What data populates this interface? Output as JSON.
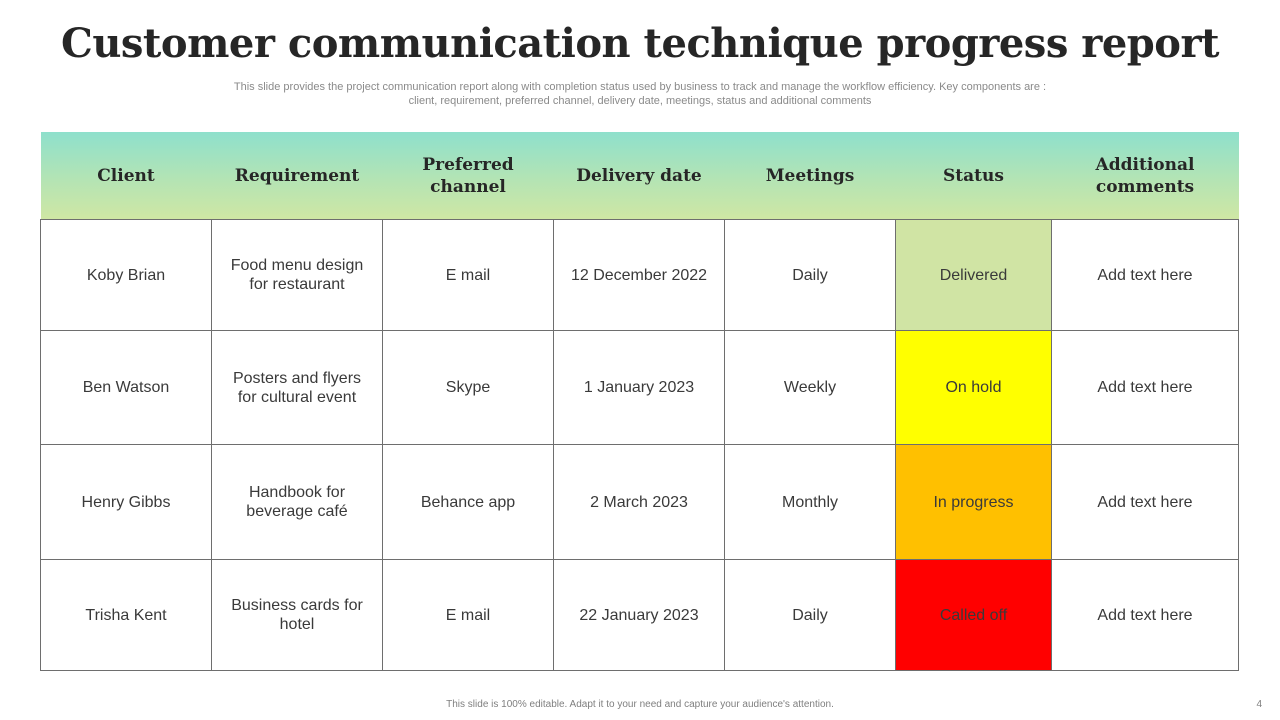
{
  "slide": {
    "title": "Customer communication technique progress report",
    "subtitle_line1": "This slide provides the project communication report along with completion status used by business to track and manage the workflow efficiency. Key components are :",
    "subtitle_line2": "client, requirement, preferred channel, delivery date, meetings, status and additional comments",
    "footer": "This slide is 100% editable. Adapt it to your need and capture your audience's attention.",
    "page_number": "4"
  },
  "table": {
    "headers": {
      "client": "Client",
      "requirement": "Requirement",
      "channel": "Preferred channel",
      "delivery": "Delivery date",
      "meetings": "Meetings",
      "status": "Status",
      "comments": "Additional comments"
    },
    "rows": [
      {
        "client": "Koby Brian",
        "requirement": "Food menu design for restaurant",
        "channel": "E mail",
        "delivery": "12 December 2022",
        "meetings": "Daily",
        "status": "Delivered",
        "comments": "Add text here"
      },
      {
        "client": "Ben Watson",
        "requirement": "Posters and flyers for cultural event",
        "channel": "Skype",
        "delivery": "1 January 2023",
        "meetings": "Weekly",
        "status": "On hold",
        "comments": "Add text here"
      },
      {
        "client": "Henry Gibbs",
        "requirement": "Handbook for beverage café",
        "channel": "Behance app",
        "delivery": "2 March 2023",
        "meetings": "Monthly",
        "status": "In progress",
        "comments": "Add text here"
      },
      {
        "client": "Trisha Kent",
        "requirement": "Business cards for hotel",
        "channel": "E mail",
        "delivery": "22 January 2023",
        "meetings": "Daily",
        "status": "Called off",
        "comments": "Add text here"
      }
    ]
  },
  "colors": {
    "header_gradient_top": "#8ee0cc",
    "header_gradient_bottom": "#cfe7a4",
    "status_delivered": "#d0e4a4",
    "status_on_hold": "#ffff00",
    "status_in_progress": "#ffc000",
    "status_called_off": "#ff0000"
  }
}
